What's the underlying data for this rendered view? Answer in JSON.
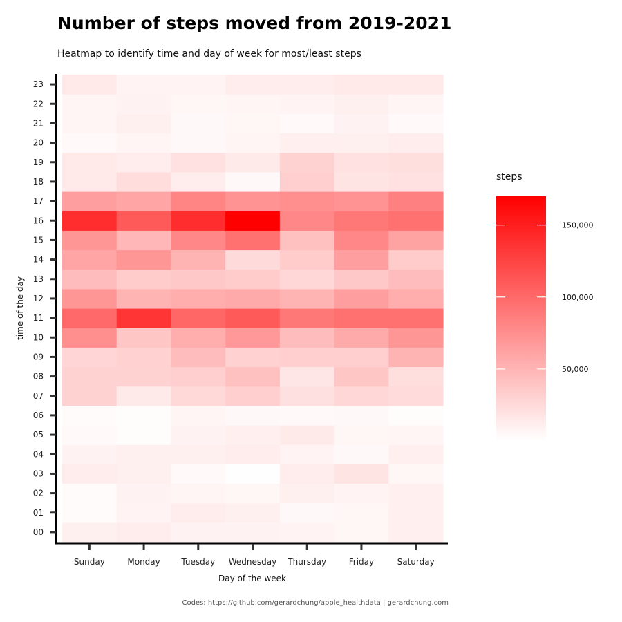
{
  "chart_data": {
    "type": "heatmap",
    "title": "Number of steps moved from 2019-2021",
    "subtitle": "Heatmap to identify time and day of week for most/least steps",
    "xlabel": "Day of the week",
    "ylabel": "time of the day",
    "caption": "Codes: https://github.com/gerardchung/apple_healthdata | gerardchung.com",
    "x": [
      "Sunday",
      "Monday",
      "Tuesday",
      "Wednesday",
      "Thursday",
      "Friday",
      "Saturday"
    ],
    "y": [
      "00",
      "01",
      "02",
      "03",
      "04",
      "05",
      "06",
      "07",
      "08",
      "09",
      "10",
      "11",
      "12",
      "13",
      "14",
      "15",
      "16",
      "17",
      "18",
      "19",
      "20",
      "21",
      "22",
      "23"
    ],
    "values": [
      [
        10000,
        12000,
        9000,
        9000,
        8000,
        6000,
        11000
      ],
      [
        3000,
        8000,
        12000,
        10000,
        5000,
        6000,
        11000
      ],
      [
        3000,
        9000,
        7000,
        6000,
        10000,
        8000,
        11000
      ],
      [
        13000,
        10000,
        4000,
        1000,
        12000,
        18000,
        6000
      ],
      [
        9000,
        10000,
        10000,
        13000,
        8000,
        5000,
        11000
      ],
      [
        4000,
        2000,
        9000,
        11000,
        14000,
        6000,
        7000
      ],
      [
        3000,
        2000,
        7000,
        5000,
        4000,
        5000,
        2000
      ],
      [
        30000,
        14000,
        26000,
        33000,
        21000,
        27000,
        24000
      ],
      [
        30000,
        30000,
        33000,
        42000,
        17000,
        38000,
        22000
      ],
      [
        28000,
        31000,
        45000,
        31000,
        32000,
        32000,
        50000
      ],
      [
        75000,
        38000,
        55000,
        68000,
        45000,
        57000,
        70000
      ],
      [
        100000,
        135000,
        102000,
        110000,
        90000,
        95000,
        95000
      ],
      [
        70000,
        50000,
        55000,
        57000,
        50000,
        65000,
        55000
      ],
      [
        45000,
        35000,
        37000,
        35000,
        27000,
        37000,
        45000
      ],
      [
        60000,
        70000,
        50000,
        25000,
        35000,
        65000,
        35000
      ],
      [
        70000,
        48000,
        80000,
        95000,
        42000,
        80000,
        62000
      ],
      [
        140000,
        110000,
        140000,
        175000,
        80000,
        90000,
        95000
      ],
      [
        65000,
        60000,
        82000,
        72000,
        75000,
        72000,
        85000
      ],
      [
        15000,
        23000,
        12000,
        5000,
        32000,
        18000,
        20000
      ],
      [
        15000,
        13000,
        20000,
        14000,
        30000,
        20000,
        22000
      ],
      [
        4000,
        7000,
        5000,
        7000,
        11000,
        10000,
        12000
      ],
      [
        7000,
        10000,
        5000,
        6000,
        4000,
        9000,
        4000
      ],
      [
        7000,
        9000,
        6000,
        7000,
        8000,
        10000,
        7000
      ],
      [
        15000,
        8000,
        8000,
        12000,
        13000,
        15000,
        15000
      ]
    ],
    "legend": {
      "title": "steps",
      "labels": [
        "50,000",
        "100,000",
        "150,000"
      ],
      "breaks": [
        50000,
        100000,
        150000
      ],
      "min": 0,
      "max": 170000,
      "position": "right"
    },
    "colors": {
      "low": "#ffffff",
      "high": "#ff0000"
    },
    "grid": false
  }
}
